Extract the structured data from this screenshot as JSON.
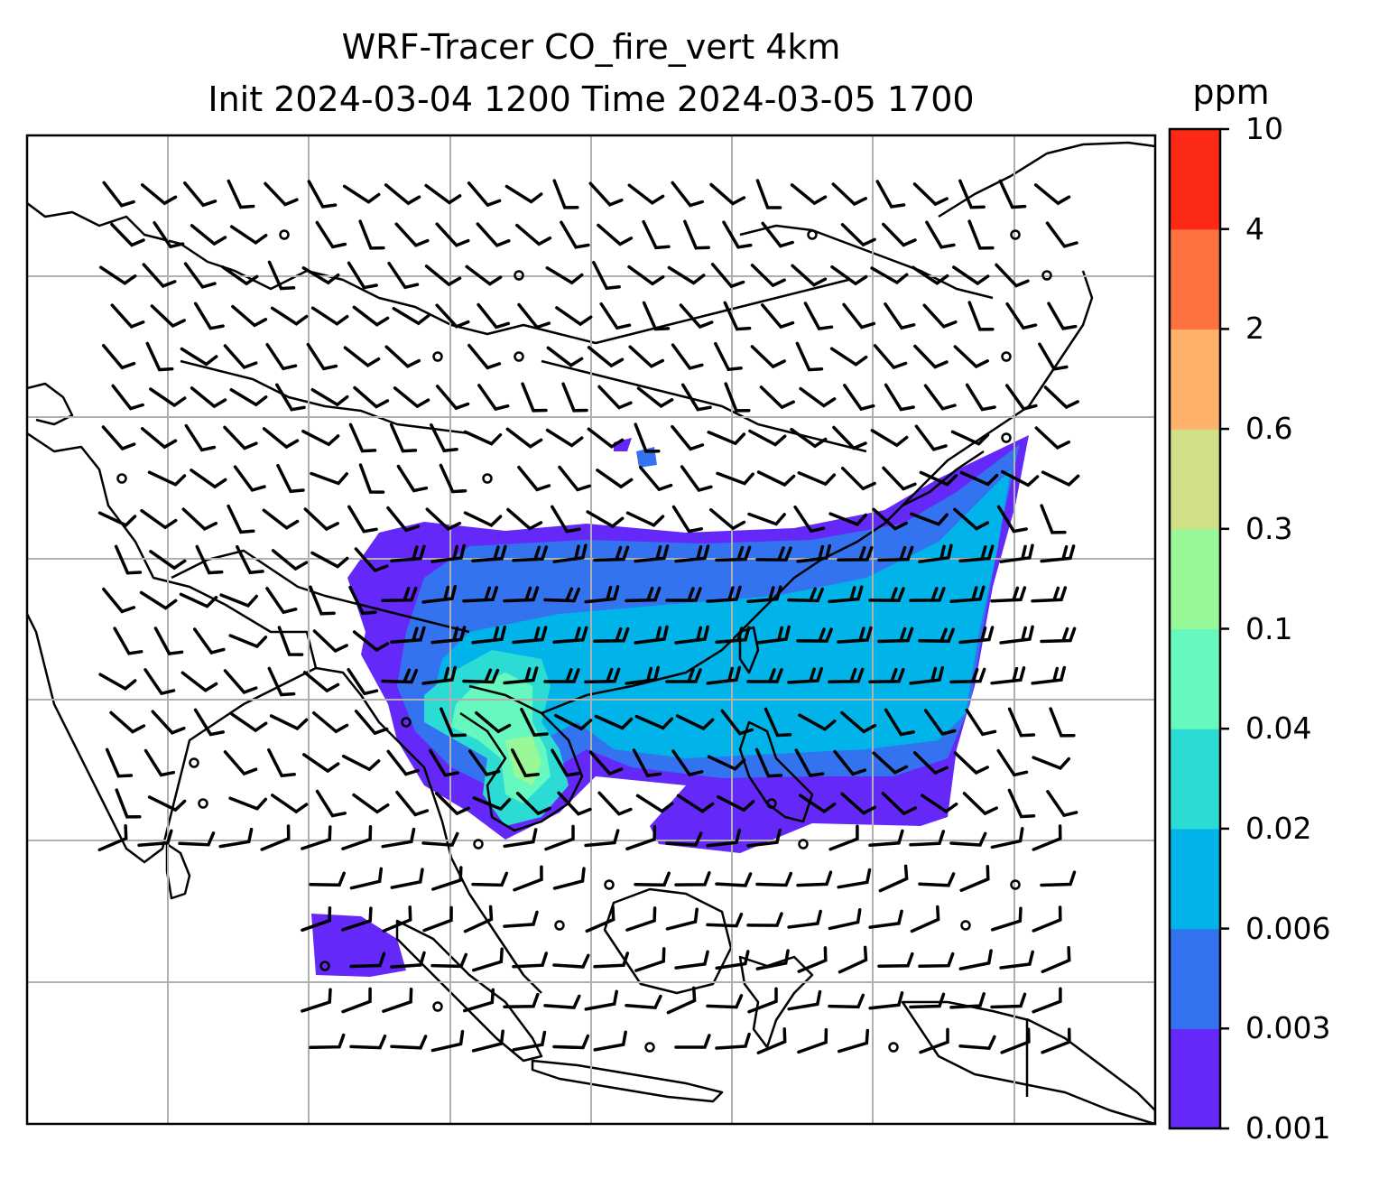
{
  "title": {
    "line1": "WRF-Tracer CO_fire_vert 4km",
    "line2": "Init 2024-03-04 1200 Time 2024-03-05 1700"
  },
  "colorbar": {
    "units": "ppm",
    "ticks": [
      "0.001",
      "0.003",
      "0.006",
      "0.02",
      "0.04",
      "0.1",
      "0.3",
      "0.6",
      "2",
      "4",
      "10"
    ],
    "colors": [
      "#6429f8",
      "#3473f0",
      "#00b4ea",
      "#2cdcd4",
      "#66f8bf",
      "#98f897",
      "#cfe086",
      "#fdb16a",
      "#fe7140",
      "#fe2a18"
    ]
  },
  "map": {
    "feature": "CO fire tracer concentration plume with wind barbs over Southeast and East Asia",
    "grid": true,
    "plume_colors": {
      "low": "#6429f8",
      "mid": "#3473f0",
      "high": "#00b4ea",
      "peak": "#2cdcd4",
      "core": "#66f8bf",
      "max": "#98f897"
    },
    "coastline_color": "#000000",
    "grid_color": "#b0b0b0"
  }
}
